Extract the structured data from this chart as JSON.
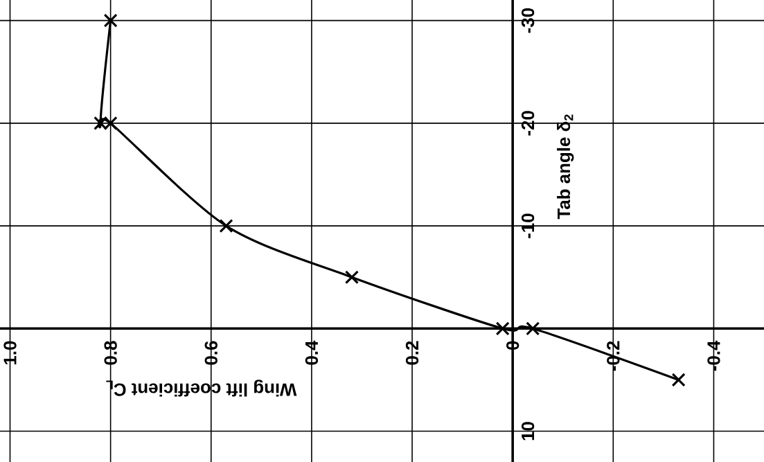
{
  "chart_data": {
    "type": "line",
    "xlabel": "Wing lift coefficient C$_{L}$",
    "ylabel": "Tab angle δ$_{2}$",
    "xlim": [
      1.02,
      -0.5
    ],
    "ylim": [
      13,
      -32
    ],
    "xticks": [
      {
        "value": 1.0,
        "label": "1.0"
      },
      {
        "value": 0.8,
        "label": "0.8"
      },
      {
        "value": 0.6,
        "label": "0.6"
      },
      {
        "value": 0.4,
        "label": "0.4"
      },
      {
        "value": 0.2,
        "label": "0.2"
      },
      0,
      -0.2,
      -0.4
    ],
    "yticks": [
      -30,
      -20,
      -10,
      10
    ],
    "grid": true,
    "marker": "cross",
    "line_style": "solid",
    "series": [
      {
        "color": "#000000",
        "x": [
          -0.33,
          -0.04,
          0.02,
          0.32,
          0.57,
          0.8,
          0.82,
          0.8
        ],
        "values": [
          5,
          0,
          0,
          -5,
          -10,
          -20,
          -20,
          -30
        ]
      }
    ]
  }
}
